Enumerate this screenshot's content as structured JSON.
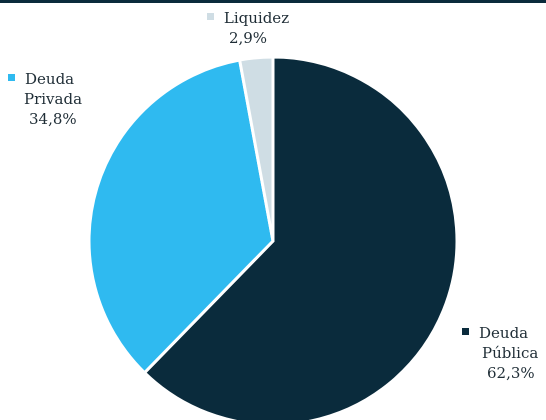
{
  "chart_data": {
    "type": "pie",
    "slices": [
      {
        "label_lines": [
          "Deuda",
          "Pública"
        ],
        "value": 62.3,
        "value_label": "62,3%",
        "color": "#0a2b3c"
      },
      {
        "label_lines": [
          "Deuda",
          "Privada"
        ],
        "value": 34.8,
        "value_label": "34,8%",
        "color": "#2fbaf0"
      },
      {
        "label_lines": [
          "Liquidez"
        ],
        "value": 2.9,
        "value_label": "2,9%",
        "color": "#cfdde4"
      }
    ],
    "legend": "labels-beside-slices",
    "start_angle": "12 o'clock",
    "direction": "clockwise"
  }
}
